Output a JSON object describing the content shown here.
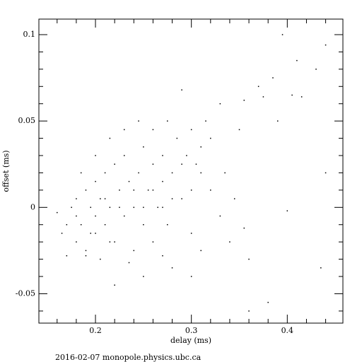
{
  "chart_data": {
    "type": "scatter",
    "xlabel": "delay (ms)",
    "ylabel": "offset (ms)",
    "footer": "2016-02-07 monopole.physics.ubc.ca",
    "color": "#000000",
    "xlim": [
      0.141,
      0.458
    ],
    "ylim": [
      -0.067,
      0.109
    ],
    "xticks": [
      0.2,
      0.3,
      0.4
    ],
    "yticks": [
      -0.05,
      0,
      0.05,
      0.1
    ],
    "xminorticks": [
      0.16,
      0.18,
      0.22,
      0.24,
      0.26,
      0.28,
      0.32,
      0.34,
      0.36,
      0.38,
      0.42,
      0.44
    ],
    "yminorticks": [
      -0.06,
      -0.04,
      -0.03,
      -0.02,
      -0.01,
      0.01,
      0.02,
      0.03,
      0.04,
      0.06,
      0.07,
      0.08,
      0.09
    ],
    "x": [
      0.17,
      0.175,
      0.18,
      0.18,
      0.185,
      0.19,
      0.19,
      0.195,
      0.2,
      0.2,
      0.205,
      0.205,
      0.21,
      0.21,
      0.215,
      0.22,
      0.22,
      0.225,
      0.23,
      0.23,
      0.235,
      0.24,
      0.24,
      0.245,
      0.25,
      0.25,
      0.255,
      0.26,
      0.26,
      0.265,
      0.27,
      0.27,
      0.275,
      0.28,
      0.285,
      0.29,
      0.295,
      0.3,
      0.3,
      0.305,
      0.31,
      0.315,
      0.32,
      0.33,
      0.335,
      0.34,
      0.35,
      0.355,
      0.36,
      0.37,
      0.375,
      0.38,
      0.385,
      0.39,
      0.395,
      0.4,
      0.405,
      0.41,
      0.415,
      0.43,
      0.44,
      0.44,
      0.435,
      0.3,
      0.28,
      0.25,
      0.22,
      0.16,
      0.165,
      0.17,
      0.185,
      0.2,
      0.215,
      0.23,
      0.245,
      0.26,
      0.275,
      0.29,
      0.32,
      0.33,
      0.345,
      0.355,
      0.31,
      0.27,
      0.235,
      0.19,
      0.215,
      0.25,
      0.24,
      0.26,
      0.225,
      0.21,
      0.27,
      0.28,
      0.3,
      0.29,
      0.31,
      0.2,
      0.195,
      0.18,
      0.36
    ],
    "y": [
      -0.01,
      0.0,
      -0.02,
      0.005,
      -0.01,
      0.01,
      -0.025,
      0.0,
      -0.015,
      0.015,
      -0.03,
      0.005,
      0.02,
      -0.01,
      0.0,
      0.025,
      -0.02,
      0.01,
      -0.005,
      0.03,
      0.015,
      -0.025,
      0.0,
      0.02,
      0.035,
      -0.01,
      0.01,
      0.025,
      -0.02,
      0.0,
      0.03,
      0.015,
      -0.01,
      0.02,
      0.04,
      0.005,
      0.03,
      0.045,
      -0.015,
      0.025,
      0.035,
      0.05,
      0.01,
      0.06,
      0.02,
      -0.02,
      0.045,
      0.062,
      -0.03,
      0.07,
      0.064,
      -0.055,
      0.075,
      0.05,
      0.1,
      -0.002,
      0.065,
      0.085,
      0.064,
      0.08,
      0.094,
      0.02,
      -0.035,
      -0.04,
      -0.035,
      -0.04,
      -0.045,
      -0.003,
      -0.015,
      -0.028,
      0.02,
      0.03,
      0.04,
      0.045,
      0.05,
      0.045,
      0.05,
      0.068,
      0.04,
      -0.005,
      0.005,
      -0.012,
      -0.025,
      -0.028,
      -0.032,
      -0.028,
      -0.02,
      0.0,
      0.01,
      0.01,
      0.0,
      0.005,
      0.0,
      0.005,
      0.01,
      0.025,
      0.02,
      -0.005,
      -0.015,
      -0.005,
      -0.06
    ]
  }
}
